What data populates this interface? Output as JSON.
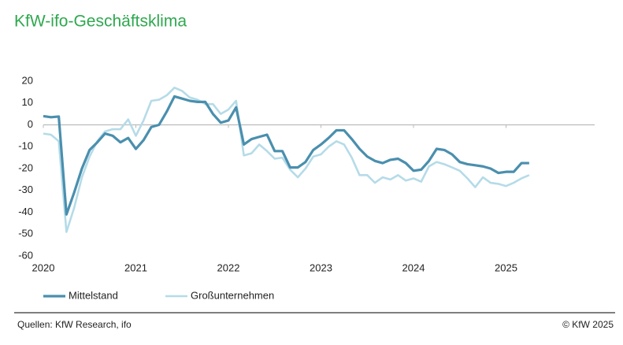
{
  "chart_data": {
    "type": "line",
    "title": "KfW-ifo-Geschäftsklima",
    "source": "Quellen: KfW Research, ifo",
    "copyright": "© KfW 2025",
    "x": [
      2020,
      2020.083,
      2020.167,
      2020.25,
      2020.333,
      2020.417,
      2020.5,
      2020.583,
      2020.667,
      2020.75,
      2020.833,
      2020.917,
      2021,
      2021.083,
      2021.167,
      2021.25,
      2021.333,
      2021.417,
      2021.5,
      2021.583,
      2021.667,
      2021.75,
      2021.833,
      2021.917,
      2022,
      2022.083,
      2022.167,
      2022.25,
      2022.333,
      2022.417,
      2022.5,
      2022.583,
      2022.667,
      2022.75,
      2022.833,
      2022.917,
      2023,
      2023.083,
      2023.167,
      2023.25,
      2023.333,
      2023.417,
      2023.5,
      2023.583,
      2023.667,
      2023.75,
      2023.833,
      2023.917,
      2024,
      2024.083,
      2024.167,
      2024.25,
      2024.333,
      2024.417,
      2024.5,
      2024.583,
      2024.667,
      2024.75,
      2024.833,
      2024.917,
      2025,
      2025.083,
      2025.167,
      2025.25
    ],
    "series": [
      {
        "name": "Mittelstand",
        "color": "#4a8fae",
        "width": 3.2,
        "values": [
          4,
          3.5,
          3.8,
          -41,
          -31,
          -20,
          -11.5,
          -8,
          -4,
          -5,
          -8,
          -6,
          -11,
          -7,
          -1,
          0,
          6,
          13,
          12,
          11,
          10.5,
          10.5,
          5,
          1,
          2,
          8,
          -9,
          -6.5,
          -5.5,
          -4.5,
          -12,
          -12,
          -19.5,
          -19.5,
          -17,
          -11.5,
          -9,
          -6,
          -2.5,
          -2.5,
          -6.5,
          -11,
          -14.5,
          -16.5,
          -17.5,
          -16,
          -15.5,
          -17.5,
          -21,
          -20.5,
          -16.5,
          -11,
          -11.5,
          -13.5,
          -17,
          -18,
          -18.5,
          -19,
          -20,
          -22,
          -21.5,
          -21.5,
          -17.5,
          -17.5
        ]
      },
      {
        "name": "Großunternehmen",
        "color": "#b5dbe8",
        "width": 2.6,
        "values": [
          -4,
          -4.5,
          -7.5,
          -49,
          -38,
          -24,
          -14.5,
          -7.5,
          -3,
          -2,
          -2,
          2.5,
          -5,
          2,
          11,
          11.5,
          13.5,
          17,
          15.5,
          12.5,
          11.5,
          9.5,
          9.5,
          5,
          7,
          11,
          -14,
          -13,
          -9,
          -12,
          -15.5,
          -15,
          -20.5,
          -24,
          -20,
          -14.5,
          -13.5,
          -10,
          -7.5,
          -9,
          -15,
          -23,
          -23,
          -26.5,
          -24,
          -25,
          -23,
          -25.5,
          -24.5,
          -26,
          -19,
          -17,
          -18,
          -19.5,
          -21,
          -24.5,
          -28.5,
          -24,
          -26.5,
          -27,
          -28,
          -26.5,
          -24.5,
          -23
        ]
      }
    ],
    "xlim": [
      2020,
      2026
    ],
    "xticks": [
      2020,
      2021,
      2022,
      2023,
      2024,
      2025
    ],
    "ylim": [
      -60,
      20
    ],
    "yticks": [
      -60,
      -50,
      -40,
      -30,
      -20,
      -10,
      0,
      10,
      20
    ],
    "grid": false
  }
}
